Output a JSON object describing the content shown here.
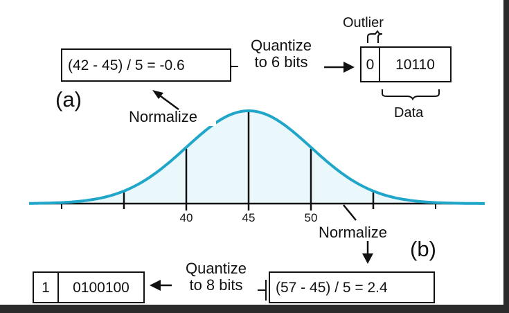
{
  "distribution": {
    "mean": 45,
    "std": 5,
    "x_ticks": [
      40,
      45,
      50
    ],
    "curve_color": "#1fa6c9",
    "fill_color": "#eaf8fc"
  },
  "example_a": {
    "label": "(a)",
    "expression": "(42 - 45) / 5 = -0.6",
    "normalize_label": "Normalize",
    "quantize_line1": "Quantize",
    "quantize_line2": "to 6 bits",
    "outlier_bit": "0",
    "data_bits": "10110",
    "outlier_label": "Outlier",
    "data_label": "Data"
  },
  "example_b": {
    "label": "(b)",
    "expression": "(57 - 45) / 5 = 2.4",
    "normalize_label": "Normalize",
    "quantize_line1": "Quantize",
    "quantize_line2": "to 8 bits",
    "outlier_bit": "1",
    "data_bits": "0100100"
  }
}
